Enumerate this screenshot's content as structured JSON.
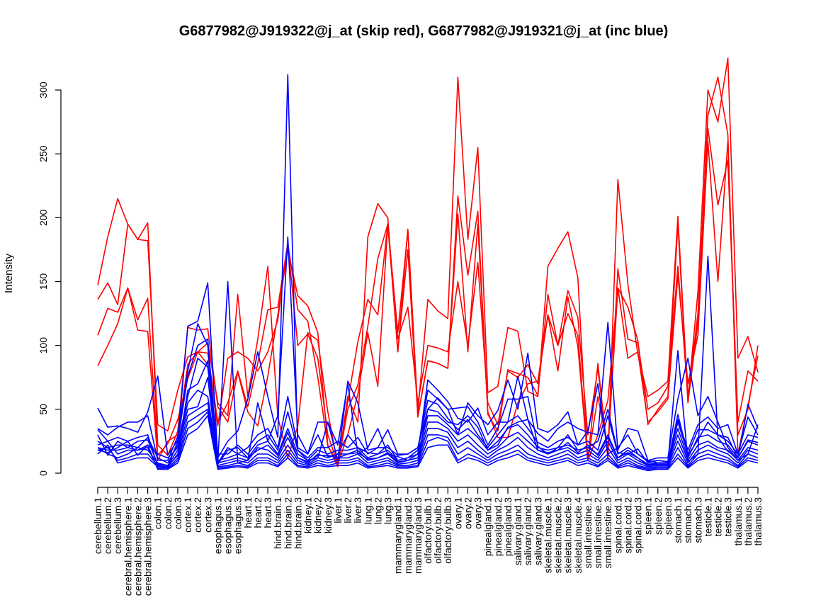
{
  "chart_data": {
    "type": "line",
    "title": "G6877982@J919322@j_at (skip red), G6877982@J919321@j_at (inc blue)",
    "xlabel": "",
    "ylabel": "Intensity",
    "ylim": [
      0,
      315
    ],
    "yticks": [
      0,
      50,
      100,
      150,
      200,
      250,
      300
    ],
    "grid": false,
    "legend": "none",
    "categories": [
      "cerebellum.1",
      "cerebellum.2",
      "cerebellum.3",
      "cerebral.hemisphere.1",
      "cerebral.hemisphere.2",
      "cerebral.hemisphere.3",
      "colon.1",
      "colon.2",
      "colon.3",
      "cortex.1",
      "cortex.2",
      "cortex.3",
      "esophagus.1",
      "esophagus.2",
      "esophagus.3",
      "heart.1",
      "heart.2",
      "heart.3",
      "hind.brain.1",
      "hind.brain.2",
      "hind.brain.3",
      "kidney.1",
      "kidney.2",
      "kidney.3",
      "liver.1",
      "liver.2",
      "liver.3",
      "lung.1",
      "lung.2",
      "lung.3",
      "mammarygland.1",
      "mammarygland.2",
      "mammarygland.3",
      "olfactory.bulb.1",
      "olfactory.bulb.2",
      "olfactory.bulb.3",
      "ovary.1",
      "ovary.2",
      "ovary.3",
      "pinealgland.1",
      "pinealgland.2",
      "pinealgland.3",
      "salivary.gland.1",
      "salivary.gland.2",
      "salivary.gland.3",
      "skeletal.muscle.1",
      "skeletal.muscle.2",
      "skeletal.muscle.3",
      "skeletal.muscle.4",
      "small.intestine.1",
      "small.intestine.2",
      "small.intestine.3",
      "spinal.cord.1",
      "spinal.cord.2",
      "spinal.cord.3",
      "spleen.1",
      "spleen.2",
      "spleen.3",
      "stomach.1",
      "stomach.2",
      "stomach.3",
      "testicle.1",
      "testicle.2",
      "testicle.3",
      "thalamus.1",
      "thalamus.2",
      "thalamus.3"
    ],
    "colors": {
      "skip": "#ff0000",
      "inc": "#0000ff",
      "axis": "#000000"
    },
    "series": [
      {
        "group": "skip",
        "values": [
          147,
          185,
          215,
          195,
          183,
          196,
          22,
          14,
          33,
          114,
          112,
          113,
          52,
          40,
          79,
          48,
          37,
          76,
          124,
          175,
          139,
          131,
          110,
          22,
          5,
          60,
          40,
          185,
          211,
          200,
          95,
          191,
          48,
          136,
          127,
          121,
          310,
          183,
          255,
          63,
          68,
          114,
          111,
          64,
          60,
          162,
          176,
          189,
          153,
          10,
          86,
          11,
          230,
          148,
          93,
          60,
          65,
          72,
          201,
          58,
          142,
          300,
          275,
          325,
          90,
          107,
          79
        ]
      },
      {
        "group": "skip",
        "values": [
          136,
          149,
          132,
          195,
          183,
          182,
          38,
          33,
          65,
          91,
          95,
          102,
          55,
          45,
          140,
          60,
          105,
          162,
          44,
          12,
          37,
          110,
          104,
          48,
          6,
          50,
          69,
          115,
          168,
          195,
          95,
          175,
          44,
          88,
          86,
          82,
          217,
          155,
          205,
          46,
          33,
          81,
          78,
          75,
          61,
          140,
          100,
          143,
          122,
          30,
          82,
          15,
          160,
          105,
          102,
          50,
          55,
          68,
          162,
          60,
          125,
          280,
          310,
          265,
          15,
          53,
          92
        ]
      },
      {
        "group": "skip",
        "values": [
          108,
          129,
          126,
          145,
          120,
          137,
          14,
          23,
          42,
          74,
          95,
          94,
          40,
          55,
          80,
          52,
          86,
          128,
          130,
          180,
          128,
          119,
          75,
          21,
          8,
          56,
          103,
          136,
          124,
          195,
          105,
          130,
          55,
          100,
          98,
          95,
          150,
          100,
          165,
          55,
          38,
          80,
          75,
          85,
          70,
          124,
          80,
          138,
          99,
          10,
          30,
          57,
          145,
          90,
          95,
          40,
          48,
          58,
          155,
          70,
          108,
          260,
          150,
          260,
          30,
          50,
          100
        ]
      },
      {
        "group": "skip",
        "values": [
          84,
          100,
          117,
          145,
          112,
          111,
          10,
          25,
          30,
          85,
          95,
          85,
          37,
          90,
          95,
          90,
          80,
          95,
          120,
          180,
          100,
          109,
          90,
          30,
          7,
          30,
          62,
          110,
          68,
          195,
          110,
          190,
          45,
          88,
          86,
          82,
          203,
          95,
          195,
          48,
          28,
          28,
          55,
          70,
          72,
          124,
          100,
          125,
          108,
          10,
          60,
          19,
          145,
          130,
          104,
          38,
          50,
          60,
          195,
          55,
          118,
          270,
          210,
          245,
          40,
          80,
          72
        ]
      },
      {
        "group": "inc",
        "values": [
          51,
          36,
          37,
          35,
          32,
          48,
          76,
          14,
          26,
          115,
          119,
          149,
          12,
          25,
          33,
          58,
          95,
          60,
          28,
          312,
          18,
          10,
          12,
          40,
          10,
          72,
          55,
          18,
          20,
          34,
          15,
          15,
          20,
          50,
          59,
          50,
          30,
          55,
          45,
          38,
          49,
          73,
          50,
          94,
          35,
          32,
          38,
          48,
          22,
          33,
          70,
          15,
          20,
          30,
          15,
          10,
          8,
          8,
          96,
          9,
          15,
          170,
          28,
          17,
          12,
          54,
          35
        ]
      },
      {
        "group": "inc",
        "values": [
          35,
          30,
          36,
          40,
          40,
          45,
          10,
          10,
          29,
          80,
          117,
          100,
          9,
          150,
          8,
          10,
          55,
          25,
          45,
          185,
          30,
          15,
          40,
          40,
          22,
          70,
          15,
          20,
          35,
          15,
          13,
          10,
          15,
          73,
          65,
          56,
          43,
          40,
          51,
          30,
          40,
          40,
          76,
          42,
          31,
          25,
          35,
          40,
          35,
          32,
          30,
          118,
          18,
          35,
          33,
          10,
          12,
          12,
          58,
          90,
          45,
          60,
          40,
          20,
          10,
          15,
          38
        ]
      },
      {
        "group": "inc",
        "values": [
          34,
          25,
          28,
          25,
          28,
          30,
          5,
          5,
          25,
          76,
          100,
          105,
          8,
          20,
          15,
          20,
          30,
          35,
          20,
          60,
          20,
          15,
          30,
          13,
          15,
          30,
          20,
          16,
          15,
          22,
          10,
          12,
          18,
          65,
          58,
          50,
          51,
          52,
          40,
          22,
          35,
          58,
          58,
          60,
          21,
          15,
          20,
          30,
          18,
          20,
          25,
          50,
          16,
          15,
          19,
          8,
          10,
          9,
          42,
          18,
          38,
          44,
          35,
          38,
          15,
          44,
          30
        ]
      },
      {
        "group": "inc",
        "values": [
          25,
          20,
          22,
          22,
          20,
          28,
          12,
          8,
          22,
          60,
          90,
          83,
          15,
          15,
          22,
          15,
          25,
          30,
          18,
          48,
          18,
          12,
          20,
          20,
          25,
          20,
          28,
          15,
          20,
          20,
          14,
          15,
          20,
          57,
          54,
          43,
          34,
          42,
          30,
          20,
          30,
          40,
          45,
          35,
          24,
          20,
          25,
          28,
          22,
          25,
          18,
          45,
          15,
          20,
          15,
          9,
          10,
          9,
          40,
          15,
          34,
          34,
          30,
          25,
          15,
          30,
          28
        ]
      },
      {
        "group": "inc",
        "values": [
          20,
          18,
          18,
          20,
          18,
          22,
          15,
          12,
          20,
          55,
          65,
          60,
          10,
          12,
          15,
          12,
          22,
          25,
          15,
          35,
          15,
          10,
          18,
          15,
          18,
          18,
          20,
          12,
          15,
          18,
          10,
          12,
          15,
          45,
          45,
          38,
          30,
          35,
          28,
          18,
          25,
          35,
          38,
          30,
          20,
          18,
          20,
          22,
          18,
          20,
          15,
          30,
          12,
          18,
          12,
          7,
          8,
          8,
          35,
          12,
          28,
          30,
          25,
          22,
          12,
          25,
          22
        ]
      },
      {
        "group": "inc",
        "values": [
          20,
          15,
          12,
          15,
          20,
          18,
          8,
          6,
          18,
          50,
          52,
          75,
          8,
          10,
          12,
          10,
          20,
          18,
          12,
          28,
          12,
          8,
          15,
          12,
          15,
          15,
          18,
          10,
          12,
          15,
          8,
          10,
          12,
          40,
          40,
          35,
          25,
          30,
          22,
          15,
          20,
          28,
          32,
          25,
          18,
          15,
          18,
          20,
          15,
          18,
          12,
          25,
          10,
          15,
          10,
          6,
          7,
          7,
          30,
          10,
          22,
          25,
          20,
          18,
          10,
          20,
          18
        ]
      },
      {
        "group": "inc",
        "values": [
          18,
          20,
          10,
          12,
          15,
          15,
          6,
          5,
          15,
          45,
          50,
          55,
          6,
          8,
          10,
          8,
          15,
          15,
          10,
          22,
          10,
          7,
          12,
          10,
          12,
          12,
          15,
          8,
          10,
          12,
          7,
          8,
          10,
          35,
          35,
          32,
          20,
          25,
          18,
          12,
          18,
          22,
          28,
          20,
          15,
          12,
          15,
          18,
          12,
          15,
          10,
          20,
          8,
          12,
          8,
          5,
          6,
          6,
          25,
          8,
          18,
          22,
          18,
          15,
          8,
          18,
          15
        ]
      },
      {
        "group": "inc",
        "values": [
          15,
          22,
          8,
          10,
          12,
          12,
          5,
          4,
          12,
          40,
          45,
          50,
          5,
          6,
          8,
          6,
          12,
          12,
          8,
          18,
          8,
          6,
          10,
          8,
          10,
          10,
          12,
          6,
          8,
          10,
          6,
          6,
          8,
          30,
          30,
          28,
          15,
          20,
          15,
          10,
          15,
          18,
          22,
          15,
          12,
          10,
          12,
          15,
          10,
          12,
          8,
          15,
          6,
          10,
          6,
          4,
          5,
          5,
          20,
          6,
          15,
          18,
          15,
          12,
          6,
          15,
          12
        ]
      },
      {
        "group": "inc",
        "values": [
          22,
          25,
          15,
          18,
          18,
          20,
          4,
          3,
          10,
          35,
          40,
          48,
          4,
          5,
          6,
          5,
          10,
          10,
          6,
          15,
          6,
          5,
          8,
          6,
          8,
          8,
          10,
          5,
          6,
          8,
          5,
          5,
          6,
          25,
          28,
          25,
          10,
          15,
          12,
          8,
          12,
          15,
          18,
          12,
          10,
          8,
          10,
          12,
          8,
          10,
          6,
          12,
          5,
          8,
          5,
          3,
          4,
          4,
          15,
          5,
          12,
          15,
          12,
          10,
          5,
          12,
          10
        ]
      },
      {
        "group": "inc",
        "values": [
          18,
          16,
          20,
          25,
          14,
          22,
          3,
          3,
          8,
          30,
          35,
          45,
          3,
          4,
          5,
          4,
          8,
          8,
          5,
          12,
          5,
          4,
          6,
          5,
          6,
          6,
          8,
          4,
          5,
          6,
          4,
          4,
          5,
          20,
          22,
          22,
          8,
          12,
          10,
          6,
          10,
          12,
          15,
          10,
          8,
          6,
          8,
          10,
          6,
          8,
          5,
          10,
          4,
          6,
          4,
          2,
          3,
          3,
          12,
          4,
          10,
          12,
          10,
          8,
          4,
          10,
          8
        ]
      },
      {
        "group": "inc",
        "values": [
          30,
          14,
          25,
          20,
          25,
          26,
          7,
          6,
          14,
          65,
          70,
          88,
          7,
          18,
          20,
          12,
          18,
          22,
          14,
          32,
          12,
          9,
          14,
          14,
          12,
          15,
          16,
          11,
          12,
          16,
          9,
          10,
          12,
          50,
          48,
          40,
          38,
          45,
          36,
          18,
          22,
          36,
          40,
          42,
          18,
          16,
          18,
          24,
          16,
          22,
          14,
          28,
          12,
          16,
          12,
          6,
          8,
          8,
          46,
          14,
          26,
          40,
          30,
          28,
          12,
          26,
          24
        ]
      }
    ]
  }
}
